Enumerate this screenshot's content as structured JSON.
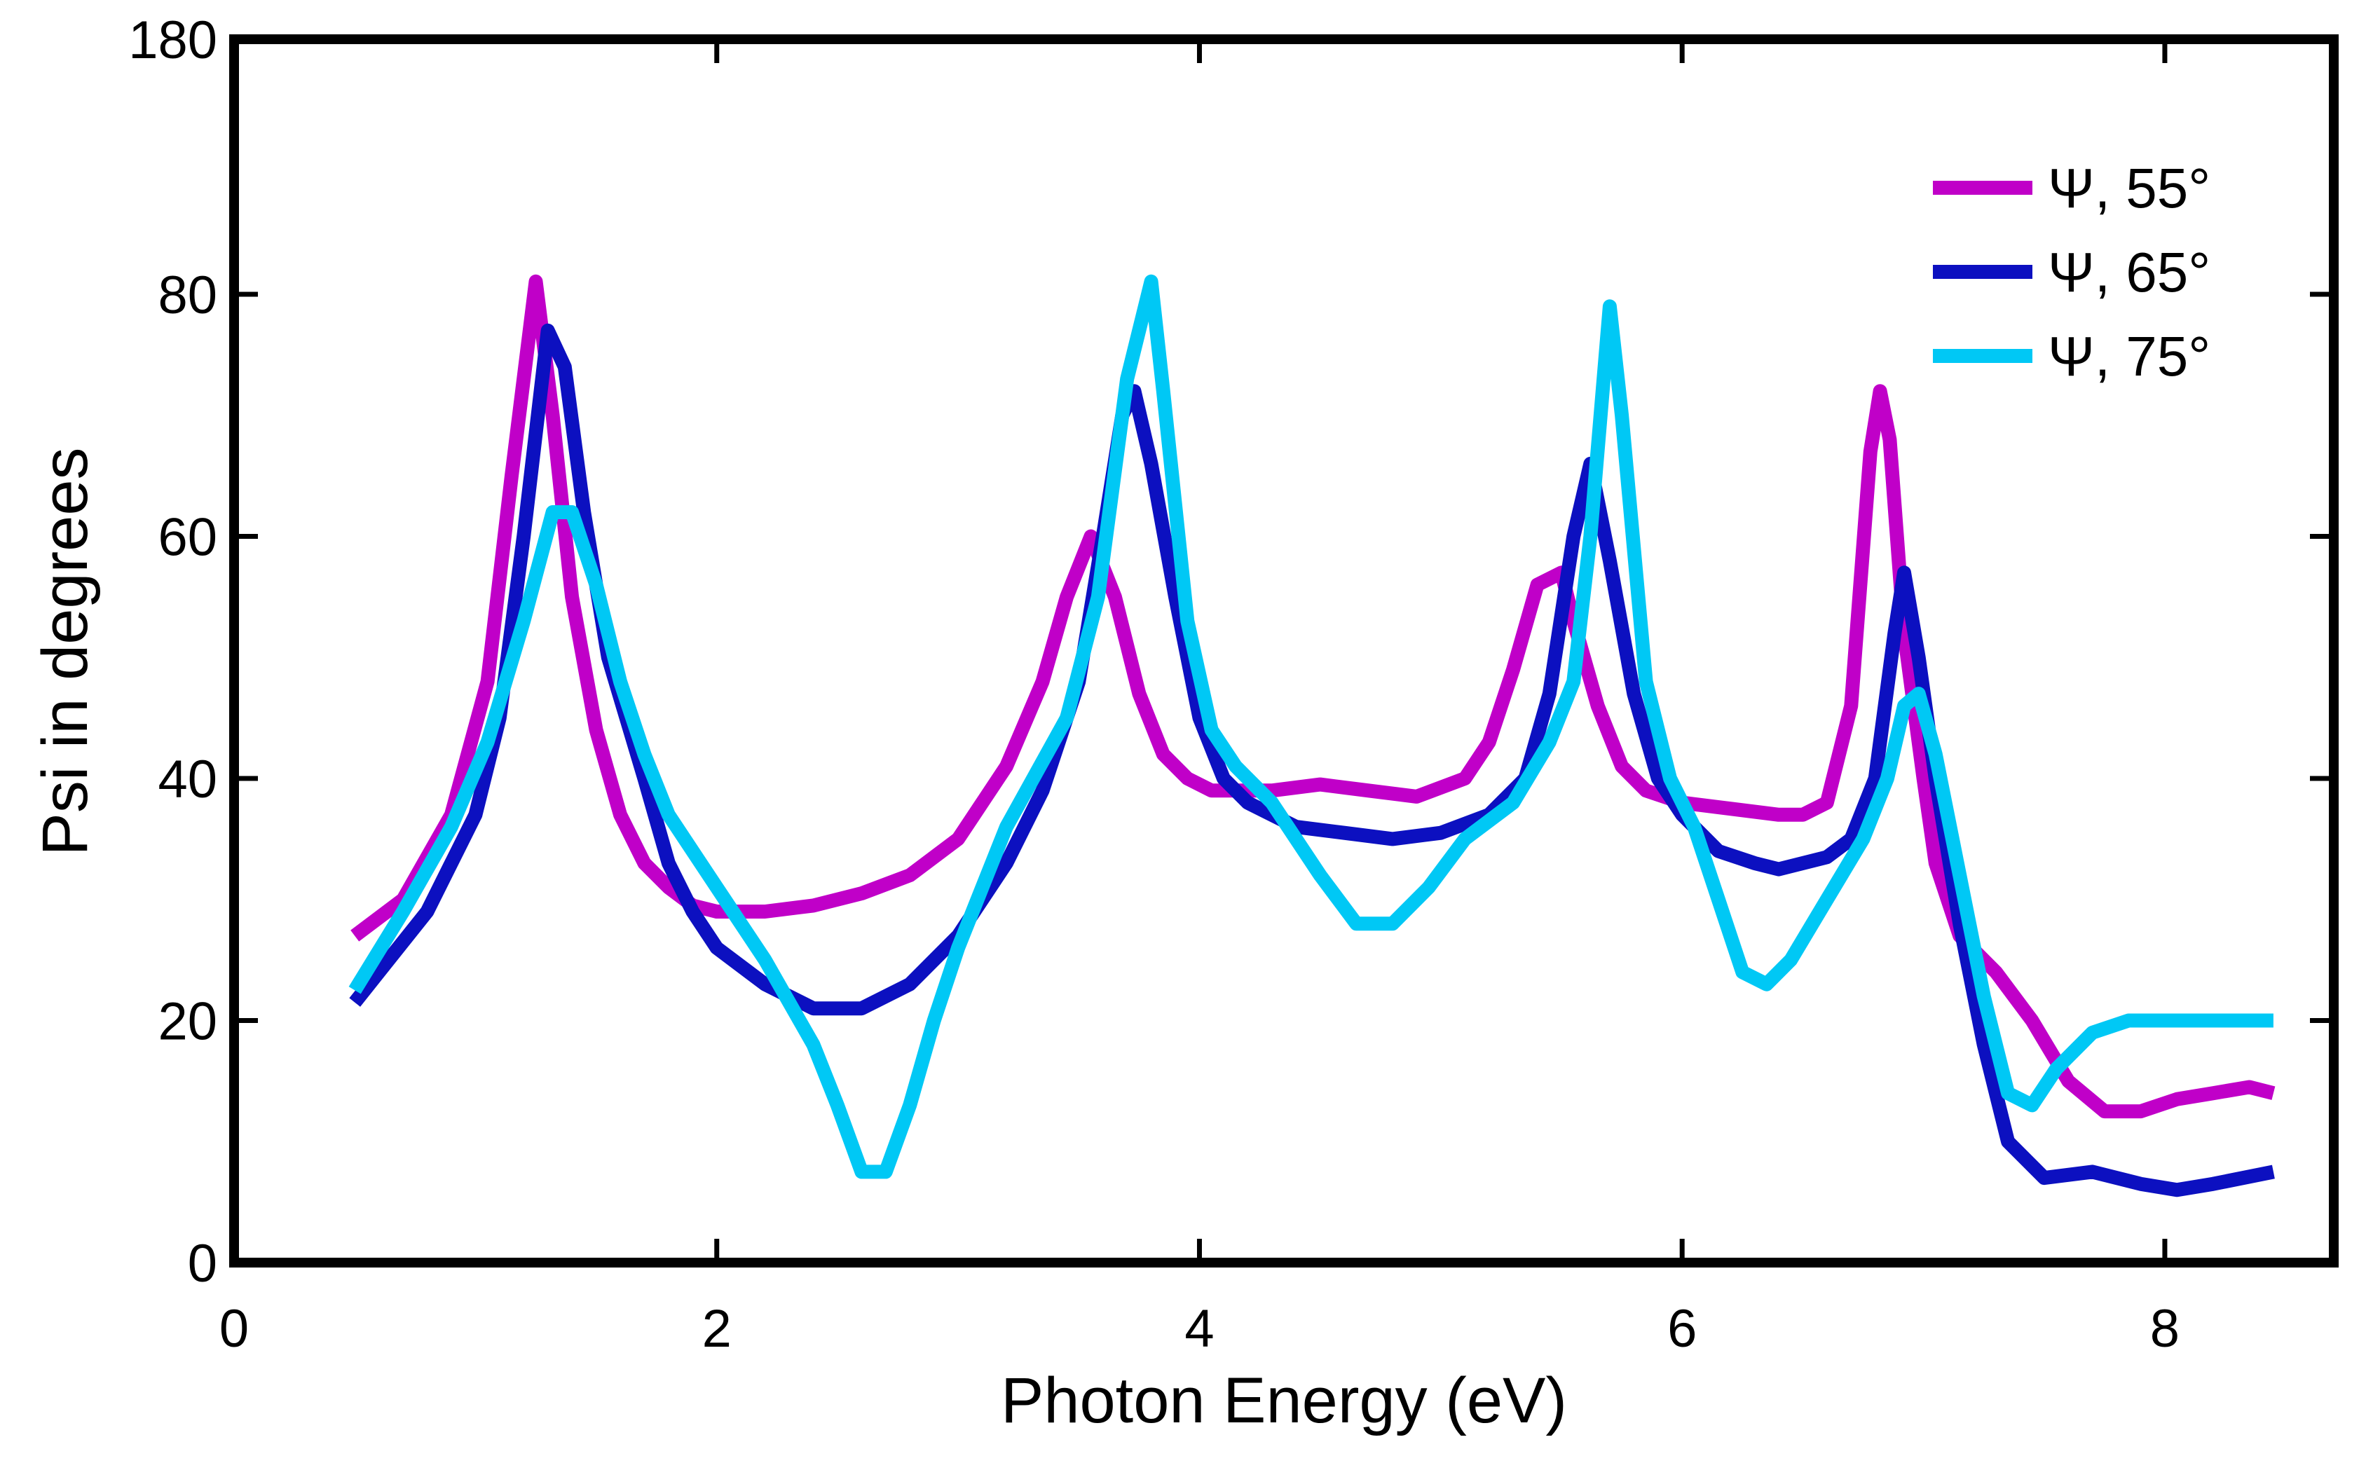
{
  "chart_data": {
    "type": "line",
    "xlabel": "Photon Energy (eV)",
    "ylabel": "Psi in degrees",
    "xlim": [
      0,
      8.7
    ],
    "ylim": [
      0,
      180
    ],
    "xticks": [
      0,
      2,
      4,
      6,
      8
    ],
    "xtick_labels": [
      "0",
      "2",
      "4",
      "6",
      "8"
    ],
    "yticks": [
      0,
      20,
      40,
      60,
      80,
      180
    ],
    "ytick_labels": [
      "0",
      "20",
      "40",
      "60",
      "80",
      "180"
    ],
    "grid": false,
    "legend_position": "top-right",
    "series": [
      {
        "name": "Ψ, 55°",
        "color": "#c000c8",
        "points": [
          [
            0.5,
            27
          ],
          [
            0.7,
            30
          ],
          [
            0.9,
            37
          ],
          [
            1.05,
            48
          ],
          [
            1.15,
            65
          ],
          [
            1.25,
            85
          ],
          [
            1.32,
            70
          ],
          [
            1.4,
            55
          ],
          [
            1.5,
            44
          ],
          [
            1.6,
            37
          ],
          [
            1.7,
            33
          ],
          [
            1.8,
            31
          ],
          [
            1.9,
            29.5
          ],
          [
            2.0,
            29
          ],
          [
            2.2,
            29
          ],
          [
            2.4,
            29.5
          ],
          [
            2.6,
            30.5
          ],
          [
            2.8,
            32
          ],
          [
            3.0,
            35
          ],
          [
            3.2,
            41
          ],
          [
            3.35,
            48
          ],
          [
            3.45,
            55
          ],
          [
            3.55,
            60
          ],
          [
            3.65,
            55
          ],
          [
            3.75,
            47
          ],
          [
            3.85,
            42
          ],
          [
            3.95,
            40
          ],
          [
            4.05,
            39
          ],
          [
            4.3,
            39
          ],
          [
            4.5,
            39.5
          ],
          [
            4.7,
            39
          ],
          [
            4.9,
            38.5
          ],
          [
            5.1,
            40
          ],
          [
            5.2,
            43
          ],
          [
            5.3,
            49
          ],
          [
            5.4,
            56
          ],
          [
            5.5,
            57
          ],
          [
            5.55,
            53
          ],
          [
            5.65,
            46
          ],
          [
            5.75,
            41
          ],
          [
            5.85,
            39
          ],
          [
            6.0,
            38
          ],
          [
            6.2,
            37.5
          ],
          [
            6.4,
            37
          ],
          [
            6.5,
            37
          ],
          [
            6.6,
            38
          ],
          [
            6.7,
            46
          ],
          [
            6.78,
            67
          ],
          [
            6.82,
            72
          ],
          [
            6.86,
            68
          ],
          [
            6.92,
            52
          ],
          [
            7.0,
            40
          ],
          [
            7.05,
            33
          ],
          [
            7.15,
            27
          ],
          [
            7.3,
            24
          ],
          [
            7.45,
            20
          ],
          [
            7.6,
            15
          ],
          [
            7.75,
            12.5
          ],
          [
            7.9,
            12.5
          ],
          [
            8.05,
            13.5
          ],
          [
            8.2,
            14
          ],
          [
            8.35,
            14.5
          ],
          [
            8.45,
            14
          ]
        ]
      },
      {
        "name": "Ψ, 65°",
        "color": "#0c10c0",
        "points": [
          [
            0.5,
            21.5
          ],
          [
            0.6,
            24
          ],
          [
            0.8,
            29
          ],
          [
            1.0,
            37
          ],
          [
            1.1,
            45
          ],
          [
            1.2,
            60
          ],
          [
            1.3,
            77
          ],
          [
            1.37,
            74
          ],
          [
            1.45,
            62
          ],
          [
            1.55,
            50
          ],
          [
            1.7,
            40
          ],
          [
            1.8,
            33
          ],
          [
            1.9,
            29
          ],
          [
            2.0,
            26
          ],
          [
            2.2,
            23
          ],
          [
            2.4,
            21
          ],
          [
            2.6,
            21
          ],
          [
            2.8,
            23
          ],
          [
            3.0,
            27
          ],
          [
            3.2,
            33
          ],
          [
            3.35,
            39
          ],
          [
            3.5,
            48
          ],
          [
            3.6,
            60
          ],
          [
            3.68,
            70
          ],
          [
            3.73,
            72
          ],
          [
            3.8,
            66
          ],
          [
            3.9,
            55
          ],
          [
            4.0,
            45
          ],
          [
            4.1,
            40
          ],
          [
            4.2,
            38
          ],
          [
            4.4,
            36
          ],
          [
            4.6,
            35.5
          ],
          [
            4.8,
            35
          ],
          [
            5.0,
            35.5
          ],
          [
            5.2,
            37
          ],
          [
            5.35,
            40
          ],
          [
            5.45,
            47
          ],
          [
            5.55,
            60
          ],
          [
            5.62,
            66
          ],
          [
            5.7,
            58
          ],
          [
            5.8,
            47
          ],
          [
            5.9,
            40
          ],
          [
            6.0,
            37
          ],
          [
            6.15,
            34
          ],
          [
            6.3,
            33
          ],
          [
            6.4,
            32.5
          ],
          [
            6.6,
            33.5
          ],
          [
            6.7,
            35
          ],
          [
            6.8,
            40
          ],
          [
            6.88,
            52
          ],
          [
            6.92,
            57
          ],
          [
            6.98,
            50
          ],
          [
            7.05,
            40
          ],
          [
            7.15,
            28
          ],
          [
            7.25,
            18
          ],
          [
            7.35,
            10
          ],
          [
            7.5,
            7
          ],
          [
            7.7,
            7.5
          ],
          [
            7.9,
            6.5
          ],
          [
            8.05,
            6
          ],
          [
            8.2,
            6.5
          ],
          [
            8.45,
            7.5
          ]
        ]
      },
      {
        "name": "Ψ, 75°",
        "color": "#00c8f5",
        "points": [
          [
            0.5,
            22.5
          ],
          [
            0.7,
            29
          ],
          [
            0.9,
            36
          ],
          [
            1.05,
            43
          ],
          [
            1.2,
            53
          ],
          [
            1.32,
            62
          ],
          [
            1.4,
            62
          ],
          [
            1.5,
            56
          ],
          [
            1.6,
            48
          ],
          [
            1.7,
            42
          ],
          [
            1.8,
            37
          ],
          [
            2.0,
            31
          ],
          [
            2.2,
            25
          ],
          [
            2.4,
            18
          ],
          [
            2.5,
            13
          ],
          [
            2.6,
            7.5
          ],
          [
            2.7,
            7.5
          ],
          [
            2.8,
            13
          ],
          [
            2.9,
            20
          ],
          [
            3.0,
            26
          ],
          [
            3.2,
            36
          ],
          [
            3.45,
            45
          ],
          [
            3.58,
            55
          ],
          [
            3.7,
            73
          ],
          [
            3.8,
            85
          ],
          [
            3.85,
            72
          ],
          [
            3.95,
            53
          ],
          [
            4.05,
            44
          ],
          [
            4.15,
            41
          ],
          [
            4.3,
            38
          ],
          [
            4.5,
            32
          ],
          [
            4.65,
            28
          ],
          [
            4.8,
            28
          ],
          [
            4.95,
            31
          ],
          [
            5.1,
            35
          ],
          [
            5.3,
            38
          ],
          [
            5.45,
            43
          ],
          [
            5.55,
            48
          ],
          [
            5.62,
            60
          ],
          [
            5.7,
            79
          ],
          [
            5.75,
            70
          ],
          [
            5.85,
            48
          ],
          [
            5.95,
            40
          ],
          [
            6.05,
            36
          ],
          [
            6.15,
            30
          ],
          [
            6.25,
            24
          ],
          [
            6.35,
            23
          ],
          [
            6.45,
            25
          ],
          [
            6.6,
            30
          ],
          [
            6.75,
            35
          ],
          [
            6.85,
            40
          ],
          [
            6.92,
            46
          ],
          [
            6.98,
            47
          ],
          [
            7.05,
            42
          ],
          [
            7.15,
            32
          ],
          [
            7.25,
            22
          ],
          [
            7.35,
            14
          ],
          [
            7.45,
            13
          ],
          [
            7.55,
            16
          ],
          [
            7.7,
            19
          ],
          [
            7.85,
            20
          ],
          [
            8.1,
            20
          ],
          [
            8.3,
            20
          ],
          [
            8.45,
            20
          ]
        ]
      }
    ]
  }
}
